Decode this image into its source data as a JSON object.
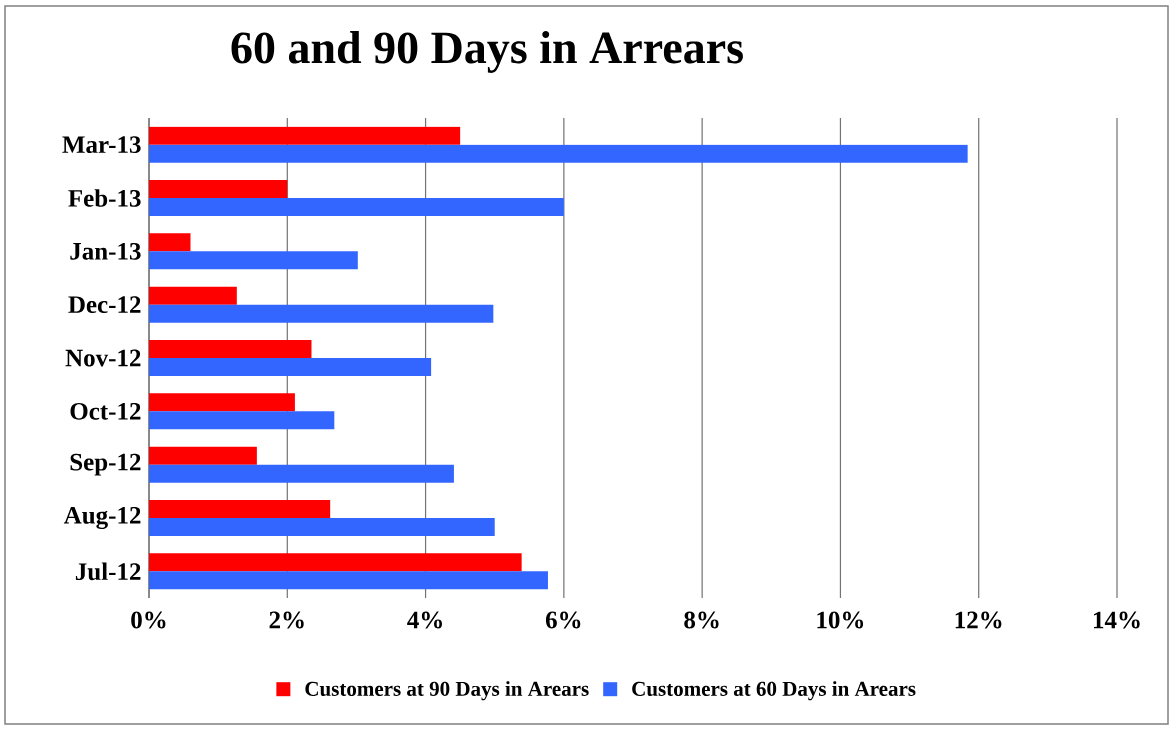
{
  "chart_data": {
    "type": "bar",
    "orientation": "horizontal",
    "title": "60 and 90 Days in Arrears",
    "categories": [
      "Mar-13",
      "Feb-13",
      "Jan-13",
      "Dec-12",
      "Nov-12",
      "Oct-12",
      "Sep-12",
      "Aug-12",
      "Jul-12"
    ],
    "series": [
      {
        "name": "Customers at 90 Days in Arears",
        "color": "#ff0000",
        "values": [
          4.5,
          2.0,
          0.6,
          1.27,
          2.35,
          2.11,
          1.56,
          2.62,
          5.39
        ]
      },
      {
        "name": "Customers at 60 Days in Arears",
        "color": "#3366ff",
        "values": [
          11.84,
          6.0,
          3.02,
          4.98,
          4.08,
          2.68,
          4.41,
          5.0,
          5.77
        ]
      }
    ],
    "xlim": [
      0,
      14
    ],
    "xticks": [
      {
        "value": 0,
        "label": "0%"
      },
      {
        "value": 2,
        "label": "2%"
      },
      {
        "value": 4,
        "label": "4%"
      },
      {
        "value": 6,
        "label": "6%"
      },
      {
        "value": 8,
        "label": "8%"
      },
      {
        "value": 10,
        "label": "10%"
      },
      {
        "value": 12,
        "label": "12%"
      },
      {
        "value": 14,
        "label": "14%"
      }
    ],
    "grid": "x",
    "legend": "bottom"
  }
}
